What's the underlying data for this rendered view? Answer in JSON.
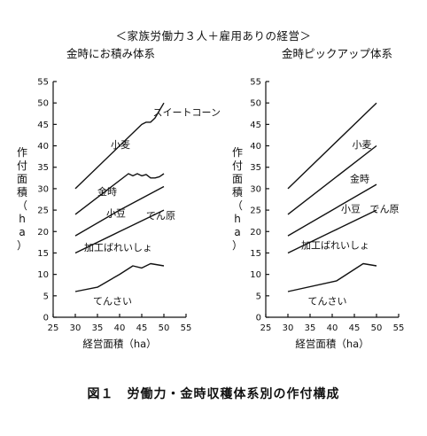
{
  "main_title": "＜家族労働力３人＋雇用ありの経営＞",
  "caption": "図１　労働力・金時収穫体系別の作付構成",
  "chart_data": [
    {
      "type": "line",
      "title": "金時にお積み体系",
      "xlabel": "経営面積（ha）",
      "ylabel": [
        "作",
        "付",
        "面",
        "積",
        "（",
        "h",
        "a",
        "）"
      ],
      "xlim": [
        25,
        55
      ],
      "ylim": [
        0,
        55
      ],
      "xticks": [
        "25",
        "30",
        "35",
        "40",
        "45",
        "50",
        "55"
      ],
      "yticks": [
        "0",
        "5",
        "10",
        "15",
        "20",
        "25",
        "30",
        "35",
        "40",
        "45",
        "50",
        "55"
      ],
      "series": [
        {
          "x": [
            30,
            35,
            40,
            43,
            45,
            47,
            50
          ],
          "y": [
            6,
            7,
            10,
            12,
            11.5,
            12.5,
            12
          ],
          "name": "てんさい"
        },
        {
          "x": [
            30,
            40,
            50
          ],
          "y": [
            15,
            20,
            25
          ],
          "name": "加工ばれいしょ"
        },
        {
          "x": [
            30,
            40,
            50
          ],
          "y": [
            19,
            25,
            30.5
          ],
          "name": "小豆"
        },
        {
          "x": [
            30,
            42,
            43,
            44,
            45,
            46,
            47,
            48,
            49,
            50
          ],
          "y": [
            24,
            33.5,
            33,
            33.5,
            33,
            33.3,
            32.5,
            32.5,
            32.8,
            33.5
          ],
          "name": "金時"
        },
        {
          "x": [
            30,
            45,
            46,
            47,
            48,
            50
          ],
          "y": [
            30,
            45,
            45.5,
            45.5,
            46.5,
            50
          ],
          "name": "小麦"
        }
      ],
      "annotations": [
        {
          "text": "スイートコーン",
          "x": 47.5,
          "y": 47
        },
        {
          "text": "小麦",
          "x": 38,
          "y": 39.5
        },
        {
          "text": "金時",
          "x": 35,
          "y": 28.5
        },
        {
          "text": "小豆",
          "x": 37,
          "y": 23.5
        },
        {
          "text": "でん原",
          "x": 46,
          "y": 23
        },
        {
          "text": "加工ばれいしょ",
          "x": 32,
          "y": 15.5
        },
        {
          "text": "てんさい",
          "x": 34,
          "y": 3
        }
      ]
    },
    {
      "type": "line",
      "title": "金時ピックアップ体系",
      "xlabel": "経営面積（ha）",
      "ylabel": [
        "作",
        "付",
        "面",
        "積",
        "（",
        "h",
        "a",
        "）"
      ],
      "xlim": [
        25,
        55
      ],
      "ylim": [
        0,
        55
      ],
      "xticks": [
        "25",
        "30",
        "35",
        "40",
        "45",
        "50",
        "55"
      ],
      "yticks": [
        "0",
        "5",
        "10",
        "15",
        "20",
        "25",
        "30",
        "35",
        "40",
        "45",
        "50",
        "55"
      ],
      "series": [
        {
          "x": [
            30,
            41,
            47,
            50
          ],
          "y": [
            6,
            8.5,
            12.5,
            12
          ],
          "name": "てんさい"
        },
        {
          "x": [
            30,
            40,
            50
          ],
          "y": [
            15,
            20,
            25
          ],
          "name": "加工ばれいしょ"
        },
        {
          "x": [
            30,
            40,
            50
          ],
          "y": [
            19,
            25,
            31
          ],
          "name": "小豆"
        },
        {
          "x": [
            30,
            50
          ],
          "y": [
            24,
            40
          ],
          "name": "金時"
        },
        {
          "x": [
            30,
            50
          ],
          "y": [
            30,
            50
          ],
          "name": "小麦"
        }
      ],
      "annotations": [
        {
          "text": "小麦",
          "x": 44.5,
          "y": 39.5
        },
        {
          "text": "金時",
          "x": 44,
          "y": 31.5
        },
        {
          "text": "小豆",
          "x": 42,
          "y": 24.5
        },
        {
          "text": "でん原",
          "x": 48.5,
          "y": 24.5
        },
        {
          "text": "加工ばれいしょ",
          "x": 33,
          "y": 16
        },
        {
          "text": "てんさい",
          "x": 34.5,
          "y": 3
        }
      ]
    }
  ]
}
